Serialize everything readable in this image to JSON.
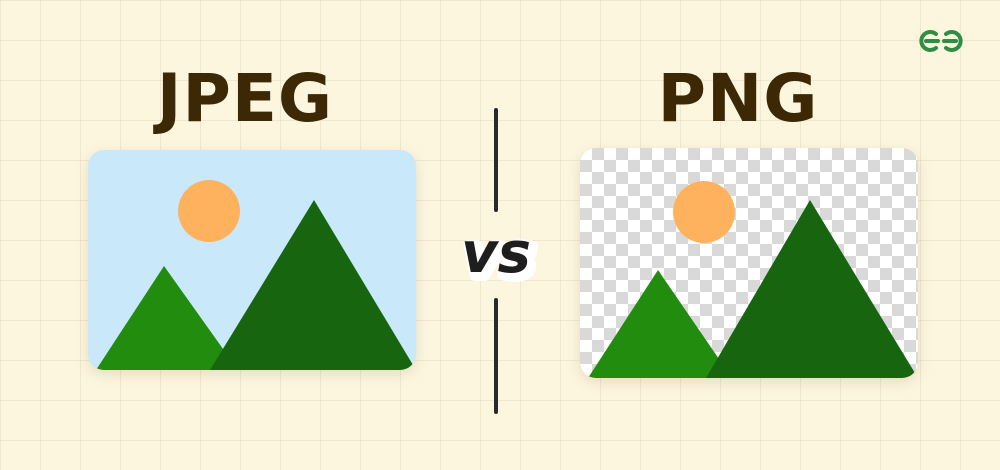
{
  "header": {
    "logo_text": "GG",
    "left_title": "JPEG",
    "right_title": "PNG",
    "versus_text": "vs"
  },
  "colors": {
    "background": "#fdf6df",
    "title_text": "#3d2805",
    "sky": "#c9e9fa",
    "sun": "#ffb25e",
    "small_mountain": "#228c0e",
    "large_mountain": "#17650f",
    "checker_light": "#ffffff",
    "checker_dark": "#d9d9d9",
    "logo_green": "#2f8d46"
  },
  "icons": {
    "logo": "geeksforgeeks-logo-icon",
    "jpeg_image": "landscape-image-icon",
    "png_image": "transparent-landscape-image-icon"
  }
}
